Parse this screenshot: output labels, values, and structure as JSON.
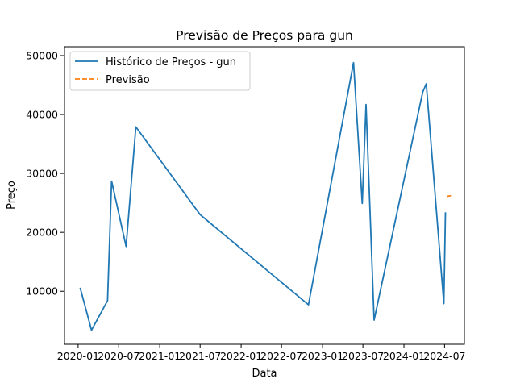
{
  "chart_data": {
    "type": "line",
    "title": "Previsão de Preços para gun",
    "xlabel": "Data",
    "ylabel": "Preço",
    "xlim": [
      "2019-11-01",
      "2024-09-28"
    ],
    "ylim": [
      1000,
      51500
    ],
    "x_ticks": [
      "2020-01-01",
      "2020-07-01",
      "2021-01-01",
      "2021-07-01",
      "2022-01-01",
      "2022-07-01",
      "2023-01-01",
      "2023-07-01",
      "2024-01-01",
      "2024-07-01"
    ],
    "x_tick_labels": [
      "2020-01",
      "2020-07",
      "2021-01",
      "2021-07",
      "2022-01",
      "2022-07",
      "2023-01",
      "2023-07",
      "2024-01",
      "2024-07"
    ],
    "y_ticks": [
      10000,
      20000,
      30000,
      40000,
      50000
    ],
    "y_tick_labels": [
      "10000",
      "20000",
      "30000",
      "40000",
      "50000"
    ],
    "grid": false,
    "legend_position": "top-left",
    "series": [
      {
        "name": "Histórico de Preços - gun",
        "color": "#1f77b4",
        "style": "solid",
        "points": [
          {
            "x": "2020-01-10",
            "y": 10600
          },
          {
            "x": "2020-03-01",
            "y": 3400
          },
          {
            "x": "2020-05-12",
            "y": 8400
          },
          {
            "x": "2020-05-30",
            "y": 28700
          },
          {
            "x": "2020-08-03",
            "y": 17600
          },
          {
            "x": "2020-09-16",
            "y": 37900
          },
          {
            "x": "2021-07-01",
            "y": 23000
          },
          {
            "x": "2022-10-30",
            "y": 7700
          },
          {
            "x": "2023-05-20",
            "y": 48800
          },
          {
            "x": "2023-06-28",
            "y": 24900
          },
          {
            "x": "2023-07-15",
            "y": 41700
          },
          {
            "x": "2023-08-20",
            "y": 5100
          },
          {
            "x": "2024-03-25",
            "y": 43800
          },
          {
            "x": "2024-04-10",
            "y": 45200
          },
          {
            "x": "2024-06-28",
            "y": 7900
          },
          {
            "x": "2024-07-05",
            "y": 23400
          }
        ]
      },
      {
        "name": "Previsão",
        "color": "#ff7f0e",
        "style": "dashed",
        "points": [
          {
            "x": "2024-07-12",
            "y": 26100
          },
          {
            "x": "2024-08-10",
            "y": 26300
          }
        ]
      }
    ]
  }
}
